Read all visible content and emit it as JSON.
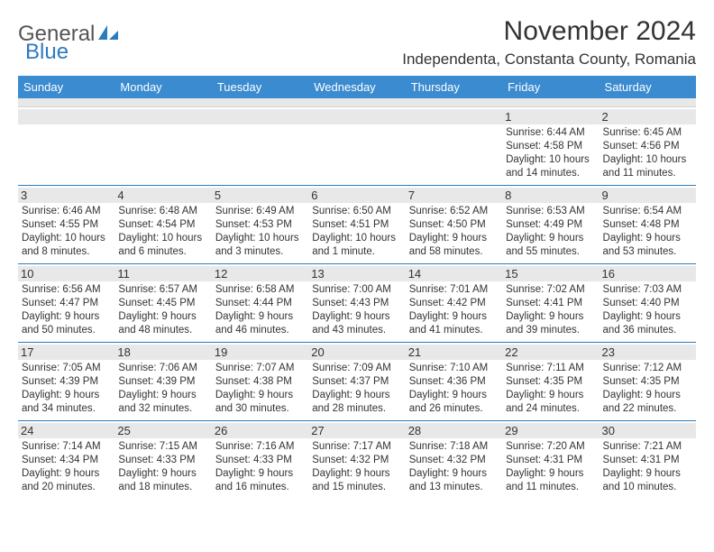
{
  "logo": {
    "text1": "General",
    "text2": "Blue"
  },
  "title": "November 2024",
  "location": "Independenta, Constanta County, Romania",
  "colors": {
    "header_bg": "#3b8bd0",
    "header_text": "#ffffff",
    "daynum_bg": "#e8e8e8",
    "rule": "#2b7bbf",
    "logo_blue": "#2b7bbf",
    "text": "#333333"
  },
  "day_labels": [
    "Sunday",
    "Monday",
    "Tuesday",
    "Wednesday",
    "Thursday",
    "Friday",
    "Saturday"
  ],
  "weeks": [
    [
      {
        "n": "",
        "sr": "",
        "ss": "",
        "dl": ""
      },
      {
        "n": "",
        "sr": "",
        "ss": "",
        "dl": ""
      },
      {
        "n": "",
        "sr": "",
        "ss": "",
        "dl": ""
      },
      {
        "n": "",
        "sr": "",
        "ss": "",
        "dl": ""
      },
      {
        "n": "",
        "sr": "",
        "ss": "",
        "dl": ""
      },
      {
        "n": "1",
        "sr": "Sunrise: 6:44 AM",
        "ss": "Sunset: 4:58 PM",
        "dl": "Daylight: 10 hours and 14 minutes."
      },
      {
        "n": "2",
        "sr": "Sunrise: 6:45 AM",
        "ss": "Sunset: 4:56 PM",
        "dl": "Daylight: 10 hours and 11 minutes."
      }
    ],
    [
      {
        "n": "3",
        "sr": "Sunrise: 6:46 AM",
        "ss": "Sunset: 4:55 PM",
        "dl": "Daylight: 10 hours and 8 minutes."
      },
      {
        "n": "4",
        "sr": "Sunrise: 6:48 AM",
        "ss": "Sunset: 4:54 PM",
        "dl": "Daylight: 10 hours and 6 minutes."
      },
      {
        "n": "5",
        "sr": "Sunrise: 6:49 AM",
        "ss": "Sunset: 4:53 PM",
        "dl": "Daylight: 10 hours and 3 minutes."
      },
      {
        "n": "6",
        "sr": "Sunrise: 6:50 AM",
        "ss": "Sunset: 4:51 PM",
        "dl": "Daylight: 10 hours and 1 minute."
      },
      {
        "n": "7",
        "sr": "Sunrise: 6:52 AM",
        "ss": "Sunset: 4:50 PM",
        "dl": "Daylight: 9 hours and 58 minutes."
      },
      {
        "n": "8",
        "sr": "Sunrise: 6:53 AM",
        "ss": "Sunset: 4:49 PM",
        "dl": "Daylight: 9 hours and 55 minutes."
      },
      {
        "n": "9",
        "sr": "Sunrise: 6:54 AM",
        "ss": "Sunset: 4:48 PM",
        "dl": "Daylight: 9 hours and 53 minutes."
      }
    ],
    [
      {
        "n": "10",
        "sr": "Sunrise: 6:56 AM",
        "ss": "Sunset: 4:47 PM",
        "dl": "Daylight: 9 hours and 50 minutes."
      },
      {
        "n": "11",
        "sr": "Sunrise: 6:57 AM",
        "ss": "Sunset: 4:45 PM",
        "dl": "Daylight: 9 hours and 48 minutes."
      },
      {
        "n": "12",
        "sr": "Sunrise: 6:58 AM",
        "ss": "Sunset: 4:44 PM",
        "dl": "Daylight: 9 hours and 46 minutes."
      },
      {
        "n": "13",
        "sr": "Sunrise: 7:00 AM",
        "ss": "Sunset: 4:43 PM",
        "dl": "Daylight: 9 hours and 43 minutes."
      },
      {
        "n": "14",
        "sr": "Sunrise: 7:01 AM",
        "ss": "Sunset: 4:42 PM",
        "dl": "Daylight: 9 hours and 41 minutes."
      },
      {
        "n": "15",
        "sr": "Sunrise: 7:02 AM",
        "ss": "Sunset: 4:41 PM",
        "dl": "Daylight: 9 hours and 39 minutes."
      },
      {
        "n": "16",
        "sr": "Sunrise: 7:03 AM",
        "ss": "Sunset: 4:40 PM",
        "dl": "Daylight: 9 hours and 36 minutes."
      }
    ],
    [
      {
        "n": "17",
        "sr": "Sunrise: 7:05 AM",
        "ss": "Sunset: 4:39 PM",
        "dl": "Daylight: 9 hours and 34 minutes."
      },
      {
        "n": "18",
        "sr": "Sunrise: 7:06 AM",
        "ss": "Sunset: 4:39 PM",
        "dl": "Daylight: 9 hours and 32 minutes."
      },
      {
        "n": "19",
        "sr": "Sunrise: 7:07 AM",
        "ss": "Sunset: 4:38 PM",
        "dl": "Daylight: 9 hours and 30 minutes."
      },
      {
        "n": "20",
        "sr": "Sunrise: 7:09 AM",
        "ss": "Sunset: 4:37 PM",
        "dl": "Daylight: 9 hours and 28 minutes."
      },
      {
        "n": "21",
        "sr": "Sunrise: 7:10 AM",
        "ss": "Sunset: 4:36 PM",
        "dl": "Daylight: 9 hours and 26 minutes."
      },
      {
        "n": "22",
        "sr": "Sunrise: 7:11 AM",
        "ss": "Sunset: 4:35 PM",
        "dl": "Daylight: 9 hours and 24 minutes."
      },
      {
        "n": "23",
        "sr": "Sunrise: 7:12 AM",
        "ss": "Sunset: 4:35 PM",
        "dl": "Daylight: 9 hours and 22 minutes."
      }
    ],
    [
      {
        "n": "24",
        "sr": "Sunrise: 7:14 AM",
        "ss": "Sunset: 4:34 PM",
        "dl": "Daylight: 9 hours and 20 minutes."
      },
      {
        "n": "25",
        "sr": "Sunrise: 7:15 AM",
        "ss": "Sunset: 4:33 PM",
        "dl": "Daylight: 9 hours and 18 minutes."
      },
      {
        "n": "26",
        "sr": "Sunrise: 7:16 AM",
        "ss": "Sunset: 4:33 PM",
        "dl": "Daylight: 9 hours and 16 minutes."
      },
      {
        "n": "27",
        "sr": "Sunrise: 7:17 AM",
        "ss": "Sunset: 4:32 PM",
        "dl": "Daylight: 9 hours and 15 minutes."
      },
      {
        "n": "28",
        "sr": "Sunrise: 7:18 AM",
        "ss": "Sunset: 4:32 PM",
        "dl": "Daylight: 9 hours and 13 minutes."
      },
      {
        "n": "29",
        "sr": "Sunrise: 7:20 AM",
        "ss": "Sunset: 4:31 PM",
        "dl": "Daylight: 9 hours and 11 minutes."
      },
      {
        "n": "30",
        "sr": "Sunrise: 7:21 AM",
        "ss": "Sunset: 4:31 PM",
        "dl": "Daylight: 9 hours and 10 minutes."
      }
    ]
  ]
}
